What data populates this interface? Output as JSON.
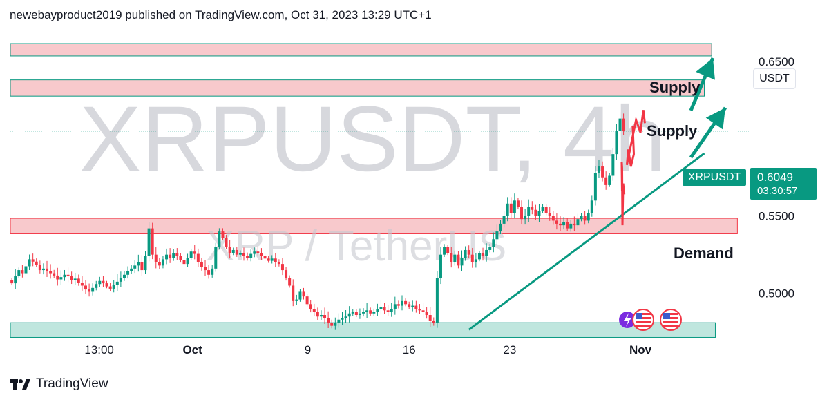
{
  "header": {
    "publisher_line": "newebayproduct2019 published on TradingView.com, Oct 31, 2023 13:29 UTC+1"
  },
  "footer": {
    "brand": "TradingView",
    "logo_icon": "tradingview-logo-icon"
  },
  "watermark": {
    "symbol_line": "XRPUSDT, 4h",
    "pair_line": "XRP / TetherUS"
  },
  "price_axis": {
    "unit": "USDT"
  },
  "last_price": {
    "symbol": "XRPUSDT",
    "value": "0.6049",
    "countdown": "03:30:57"
  },
  "annotations": {
    "supply_upper": "Supply",
    "supply_lower": "Supply",
    "demand": "Demand"
  },
  "colors": {
    "up": "#089981",
    "down": "#f23645",
    "zone_supply": "#f8c9cc",
    "zone_demand": "#bfe6de",
    "forecast": "#f23645",
    "trend": "#089981"
  },
  "chart_data": {
    "type": "candlestick",
    "title": "XRPUSDT, 4h",
    "subtitle": "XRP / TetherUS",
    "xlabel": "",
    "ylabel": "",
    "x_ticks": [
      "13:00",
      "Oct",
      "9",
      "16",
      "23",
      "Nov"
    ],
    "y_ticks": [
      "0.6500",
      "0.5500",
      "0.5000"
    ],
    "ylim": [
      0.4735,
      0.67
    ],
    "last_price": 0.6049,
    "zones": [
      {
        "kind": "supply",
        "from": 0.6535,
        "to": 0.6615
      },
      {
        "kind": "supply",
        "from": 0.6275,
        "to": 0.638
      },
      {
        "kind": "demand",
        "from": 0.5385,
        "to": 0.5485
      },
      {
        "kind": "demand",
        "from": 0.4715,
        "to": 0.481
      }
    ],
    "trendline": {
      "from": 0.4765,
      "to": 0.5905
    },
    "path_closes": [
      0.5065,
      0.511,
      0.515,
      0.513,
      0.5175,
      0.522,
      0.5205,
      0.5185,
      0.515,
      0.516,
      0.5145,
      0.513,
      0.5115,
      0.509,
      0.5105,
      0.512,
      0.511,
      0.5085,
      0.5095,
      0.507,
      0.505,
      0.5025,
      0.501,
      0.5035,
      0.506,
      0.508,
      0.5065,
      0.5045,
      0.503,
      0.5055,
      0.5075,
      0.51,
      0.512,
      0.5145,
      0.516,
      0.518,
      0.52,
      0.515,
      0.524,
      0.542,
      0.525,
      0.52,
      0.518,
      0.522,
      0.525,
      0.523,
      0.526,
      0.524,
      0.5215,
      0.519,
      0.523,
      0.527,
      0.5255,
      0.52,
      0.517,
      0.515,
      0.512,
      0.516,
      0.53,
      0.54,
      0.536,
      0.53,
      0.526,
      0.528,
      0.525,
      0.526,
      0.524,
      0.523,
      0.5255,
      0.527,
      0.526,
      0.524,
      0.5225,
      0.521,
      0.5225,
      0.52,
      0.519,
      0.515,
      0.51,
      0.505,
      0.495,
      0.496,
      0.501,
      0.498,
      0.493,
      0.49,
      0.488,
      0.485,
      0.486,
      0.484,
      0.481,
      0.479,
      0.481,
      0.483,
      0.484,
      0.485,
      0.487,
      0.488,
      0.486,
      0.487,
      0.488,
      0.489,
      0.487,
      0.488,
      0.49,
      0.491,
      0.489,
      0.488,
      0.49,
      0.493,
      0.492,
      0.495,
      0.493,
      0.491,
      0.492,
      0.49,
      0.489,
      0.488,
      0.486,
      0.482,
      0.481,
      0.51,
      0.525,
      0.53,
      0.526,
      0.52,
      0.525,
      0.518,
      0.523,
      0.528,
      0.525,
      0.52,
      0.522,
      0.526,
      0.524,
      0.528,
      0.53,
      0.535,
      0.54,
      0.545,
      0.55,
      0.558,
      0.552,
      0.56,
      0.556,
      0.548,
      0.55,
      0.556,
      0.554,
      0.55,
      0.553,
      0.556,
      0.552,
      0.55,
      0.547,
      0.545,
      0.544,
      0.546,
      0.542,
      0.545,
      0.544,
      0.548,
      0.55,
      0.547,
      0.552,
      0.56,
      0.578,
      0.582,
      0.575,
      0.57,
      0.576,
      0.59,
      0.605,
      0.613,
      0.6049
    ],
    "series": [
      {
        "name": "forecast_a",
        "points": [
          [
            0.6075,
            0.608
          ],
          [
            0.609,
            0.59
          ],
          [
            0.605,
            0.582
          ],
          [
            0.6015,
            0.593
          ],
          [
            0.5995,
            0.583
          ],
          [
            0.612,
            0.612
          ],
          [
            0.618,
            0.604
          ],
          [
            0.622,
            0.6185
          ],
          [
            0.624,
            0.61
          ]
        ]
      },
      {
        "name": "forecast_b",
        "points": [
          [
            0.596,
            0.564
          ],
          [
            0.5945,
            0.571
          ],
          [
            0.5935,
            0.544
          ],
          [
            0.593,
            0.581
          ],
          [
            0.5925,
            0.585
          ],
          [
            0.593,
            0.566
          ]
        ]
      }
    ]
  }
}
